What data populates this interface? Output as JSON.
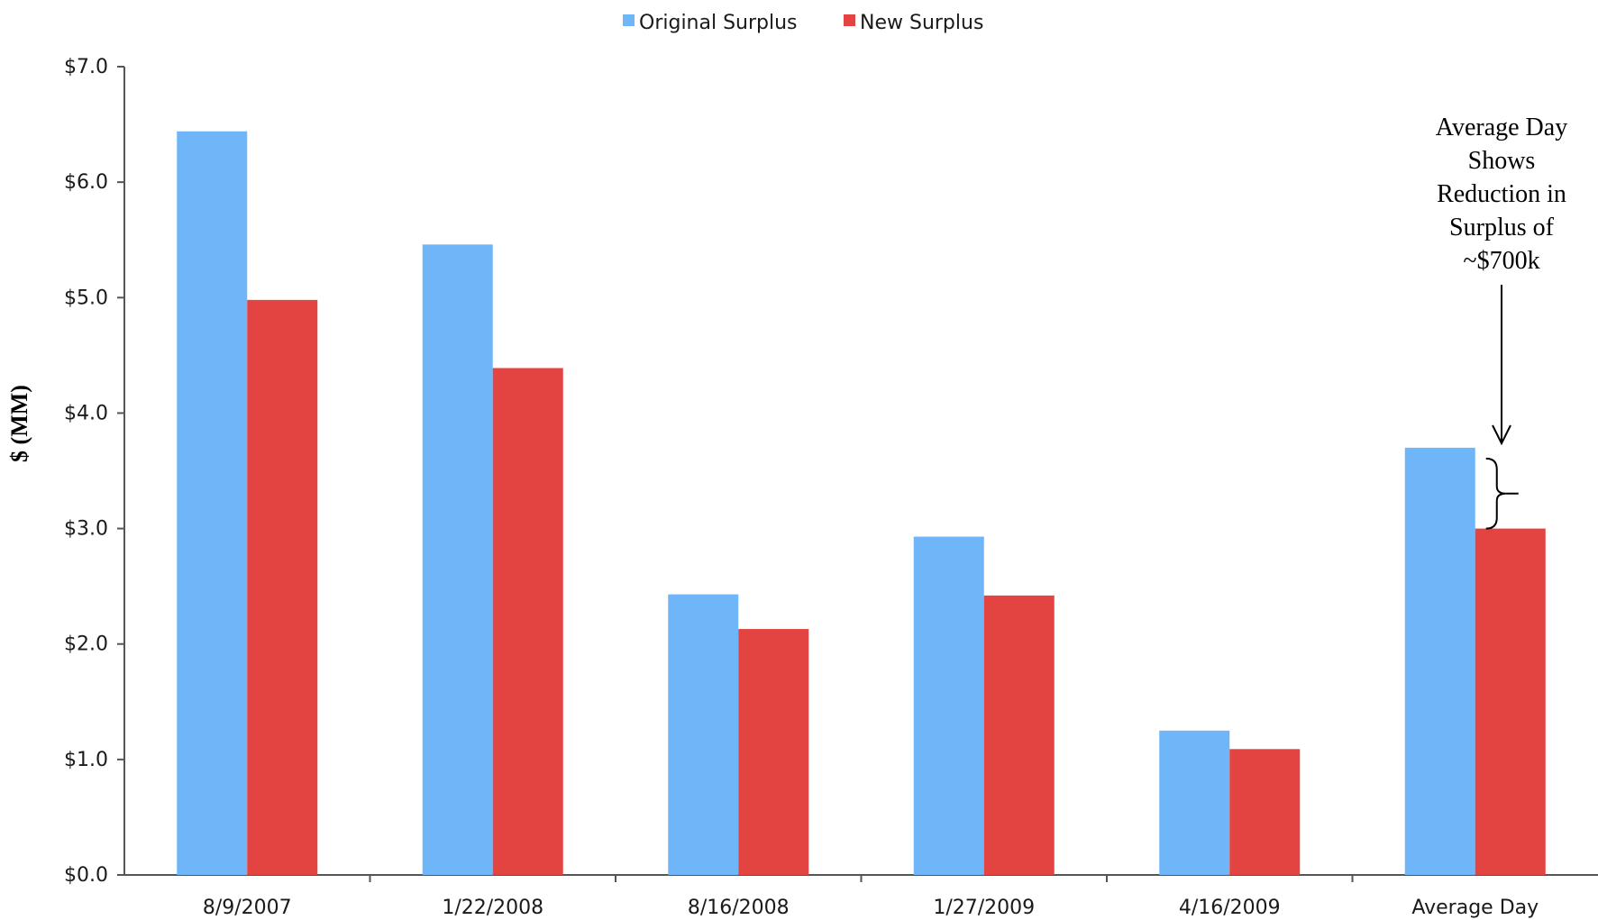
{
  "chart_data": {
    "type": "bar",
    "categories": [
      "8/9/2007",
      "1/22/2008",
      "8/16/2008",
      "1/27/2009",
      "4/16/2009",
      "Average Day"
    ],
    "series": [
      {
        "name": "Original Surplus",
        "values": [
          6.44,
          5.46,
          2.43,
          2.93,
          1.25,
          3.7
        ]
      },
      {
        "name": "New Surplus",
        "values": [
          4.98,
          4.39,
          2.13,
          2.42,
          1.09,
          3.0
        ]
      }
    ],
    "yticks": [
      "$0.0",
      "$1.0",
      "$2.0",
      "$3.0",
      "$4.0",
      "$5.0",
      "$6.0",
      "$7.0"
    ],
    "ylabel": "$ (MM)",
    "xlabel": "",
    "ylim": [
      0,
      7
    ],
    "grid": false,
    "legend_position": "top-center",
    "annotation": {
      "lines": [
        "Average Day",
        "Shows",
        "Reduction in",
        "Surplus of",
        "~$700k"
      ],
      "target_category": "Average Day"
    },
    "colors": {
      "original": "#6eb6f8",
      "new": "#e34441"
    }
  }
}
